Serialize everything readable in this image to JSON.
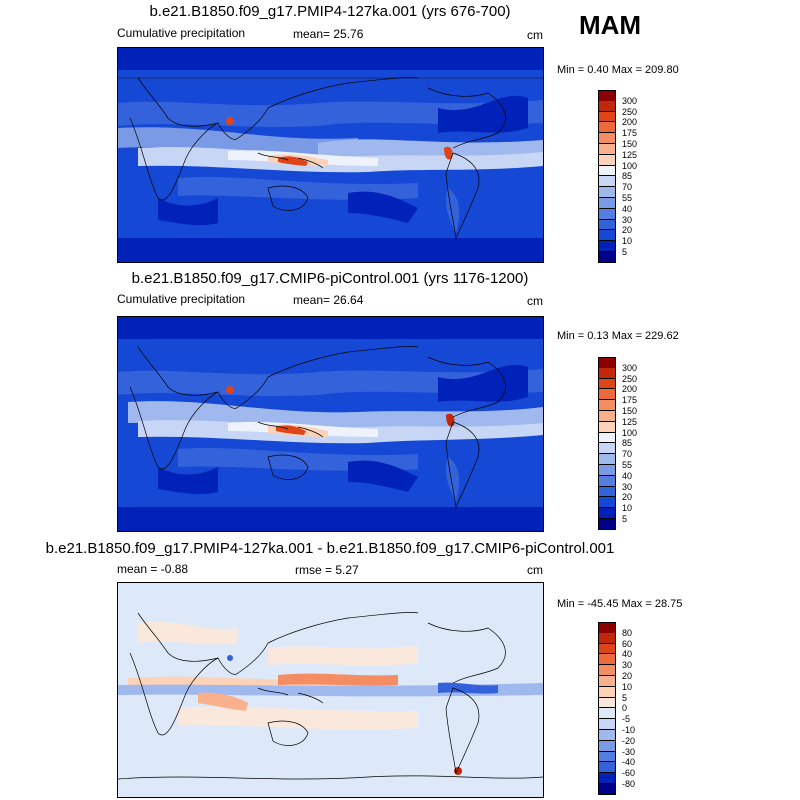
{
  "season": "MAM",
  "panels": [
    {
      "title": "b.e21.B1850.f09_g17.PMIP4-127ka.001 (yrs 676-700)",
      "left_label": "Cumulative precipitation",
      "mid_label": "mean=  25.76",
      "units": "cm",
      "minmax": "Min =   0.40 Max = 209.80"
    },
    {
      "title": "b.e21.B1850.f09_g17.CMIP6-piControl.001 (yrs 1176-1200)",
      "left_label": "Cumulative precipitation",
      "mid_label": "mean=  26.64",
      "units": "cm",
      "minmax": "Min =   0.13 Max = 229.62"
    },
    {
      "title": "b.e21.B1850.f09_g17.PMIP4-127ka.001 - b.e21.B1850.f09_g17.CMIP6-piControl.001",
      "left_label": "mean =  -0.88",
      "mid_label": "rmse =   5.27",
      "units": "cm",
      "minmax": "Min = -45.45 Max =  28.75"
    }
  ],
  "chart_data": [
    {
      "type": "heatmap",
      "title": "b.e21.B1850.f09_g17.PMIP4-127ka.001 (yrs 676-700)",
      "variable": "Cumulative precipitation",
      "units": "cm",
      "mean": 25.76,
      "min": 0.4,
      "max": 209.8,
      "colorbar_levels": [
        "300",
        "250",
        "200",
        "175",
        "150",
        "125",
        "100",
        "85",
        "70",
        "55",
        "40",
        "30",
        "20",
        "10",
        "5"
      ],
      "colors": [
        "#8b0000",
        "#c1270a",
        "#e0451a",
        "#ee6a3a",
        "#f48d63",
        "#f9b08c",
        "#fcd3b9",
        "#eef2fb",
        "#c7d6f4",
        "#9fb8ed",
        "#7a9ae6",
        "#567de0",
        "#3362db",
        "#1648d6",
        "#0022b8",
        "#00008b"
      ]
    },
    {
      "type": "heatmap",
      "title": "b.e21.B1850.f09_g17.CMIP6-piControl.001 (yrs 1176-1200)",
      "variable": "Cumulative precipitation",
      "units": "cm",
      "mean": 26.64,
      "min": 0.13,
      "max": 229.62,
      "colorbar_levels": [
        "300",
        "250",
        "200",
        "175",
        "150",
        "125",
        "100",
        "85",
        "70",
        "55",
        "40",
        "30",
        "20",
        "10",
        "5"
      ],
      "colors": [
        "#8b0000",
        "#c1270a",
        "#e0451a",
        "#ee6a3a",
        "#f48d63",
        "#f9b08c",
        "#fcd3b9",
        "#eef2fb",
        "#c7d6f4",
        "#9fb8ed",
        "#7a9ae6",
        "#567de0",
        "#3362db",
        "#1648d6",
        "#0022b8",
        "#00008b"
      ]
    },
    {
      "type": "heatmap",
      "title": "b.e21.B1850.f09_g17.PMIP4-127ka.001 - b.e21.B1850.f09_g17.CMIP6-piControl.001",
      "units": "cm",
      "mean": -0.88,
      "rmse": 5.27,
      "min": -45.45,
      "max": 28.75,
      "colorbar_levels": [
        "80",
        "60",
        "40",
        "30",
        "20",
        "10",
        "5",
        "0",
        "-5",
        "-10",
        "-20",
        "-30",
        "-40",
        "-60",
        "-80"
      ],
      "colors": [
        "#8b0000",
        "#c1270a",
        "#e0451a",
        "#ee6a3a",
        "#f48d63",
        "#f9b08c",
        "#fcd3b9",
        "#fbe8dc",
        "#dde8f8",
        "#c7d6f4",
        "#9fb8ed",
        "#7a9ae6",
        "#567de0",
        "#3362db",
        "#0022b8",
        "#00008b"
      ]
    }
  ]
}
